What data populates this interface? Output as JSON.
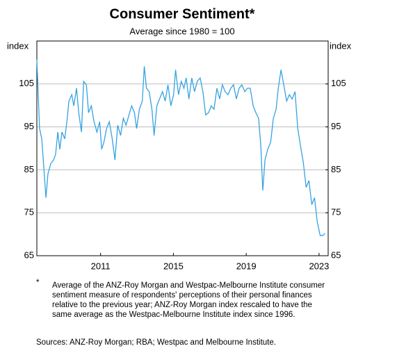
{
  "chart_data": {
    "type": "line",
    "title": "Consumer Sentiment*",
    "subtitle": "Average since 1980 = 100",
    "y_label": "index",
    "y2_label": "index",
    "footnote_marker": "*",
    "footnote": "Average of the ANZ-Roy Morgan and Westpac-Melbourne Institute consumer sentiment measure of respondents' perceptions of their personal finances relative to the previous year; ANZ-Roy Morgan index rescaled to have the same average as the Westpac-Melbourne Institute index since 1996.",
    "sources": "Sources: ANZ-Roy Morgan; RBA; Westpac and Melbourne Institute.",
    "xlim": [
      2008,
      2024
    ],
    "xticks": [
      {
        "value": 2011.5,
        "label": "2011"
      },
      {
        "value": 2015.5,
        "label": "2015"
      },
      {
        "value": 2019.5,
        "label": "2019"
      },
      {
        "value": 2023.5,
        "label": "2023"
      }
    ],
    "ylim": [
      65,
      115
    ],
    "yticks": [
      65,
      75,
      85,
      95,
      105
    ],
    "y2lim": [
      65,
      115
    ],
    "y2ticks": [
      65,
      75,
      85,
      95,
      105
    ],
    "grid": true,
    "x": [
      2008.0,
      2008.15,
      2008.27,
      2008.38,
      2008.5,
      2008.61,
      2008.77,
      2008.92,
      2009.03,
      2009.15,
      2009.26,
      2009.38,
      2009.53,
      2009.65,
      2009.76,
      2009.92,
      2010.03,
      2010.18,
      2010.3,
      2010.45,
      2010.57,
      2010.72,
      2010.84,
      2010.99,
      2011.14,
      2011.3,
      2011.45,
      2011.56,
      2011.68,
      2011.83,
      2011.98,
      2012.14,
      2012.29,
      2012.44,
      2012.6,
      2012.75,
      2012.9,
      2013.06,
      2013.21,
      2013.36,
      2013.48,
      2013.63,
      2013.79,
      2013.9,
      2014.02,
      2014.17,
      2014.32,
      2014.44,
      2014.59,
      2014.74,
      2014.9,
      2015.05,
      2015.2,
      2015.36,
      2015.51,
      2015.62,
      2015.78,
      2015.93,
      2016.08,
      2016.2,
      2016.35,
      2016.51,
      2016.66,
      2016.81,
      2016.97,
      2017.12,
      2017.27,
      2017.43,
      2017.58,
      2017.73,
      2017.89,
      2018.04,
      2018.19,
      2018.34,
      2018.5,
      2018.65,
      2018.8,
      2018.96,
      2019.11,
      2019.26,
      2019.42,
      2019.57,
      2019.72,
      2019.88,
      2020.03,
      2020.18,
      2020.3,
      2020.41,
      2020.53,
      2020.68,
      2020.84,
      2020.99,
      2021.14,
      2021.26,
      2021.41,
      2021.56,
      2021.72,
      2021.87,
      2022.02,
      2022.18,
      2022.33,
      2022.48,
      2022.64,
      2022.79,
      2022.94,
      2023.1,
      2023.25,
      2023.4,
      2023.56,
      2023.71,
      2023.82
    ],
    "series": [
      {
        "name": "Consumer sentiment",
        "color": "#35a2e2",
        "values": [
          110.7,
          94.6,
          92.2,
          85.7,
          78.5,
          84.1,
          86.5,
          87.3,
          88.6,
          93.8,
          89.8,
          93.8,
          92.2,
          96.2,
          101.0,
          102.5,
          99.9,
          104.0,
          98.3,
          93.8,
          105.6,
          104.8,
          98.3,
          99.9,
          96.2,
          93.8,
          96.2,
          89.8,
          91.4,
          94.6,
          96.2,
          92.2,
          87.3,
          95.4,
          93.0,
          97.0,
          95.4,
          97.8,
          99.9,
          98.3,
          94.6,
          99.1,
          101.0,
          109.1,
          104.0,
          103.2,
          99.1,
          93.0,
          99.9,
          101.5,
          103.2,
          101.0,
          104.8,
          99.9,
          102.5,
          108.3,
          102.5,
          105.6,
          104.0,
          106.4,
          101.5,
          106.4,
          103.2,
          105.6,
          106.4,
          103.2,
          97.8,
          98.3,
          99.9,
          99.1,
          104.0,
          101.5,
          104.8,
          103.2,
          102.5,
          104.0,
          104.8,
          101.5,
          104.0,
          104.8,
          103.2,
          104.0,
          104.0,
          99.9,
          98.3,
          97.0,
          90.6,
          80.2,
          87.3,
          89.8,
          91.4,
          97.0,
          99.1,
          104.0,
          108.3,
          104.8,
          101.0,
          102.5,
          101.5,
          103.2,
          94.6,
          90.6,
          86.5,
          80.9,
          82.5,
          76.9,
          78.5,
          72.9,
          69.7,
          69.7,
          70.2
        ]
      }
    ]
  }
}
